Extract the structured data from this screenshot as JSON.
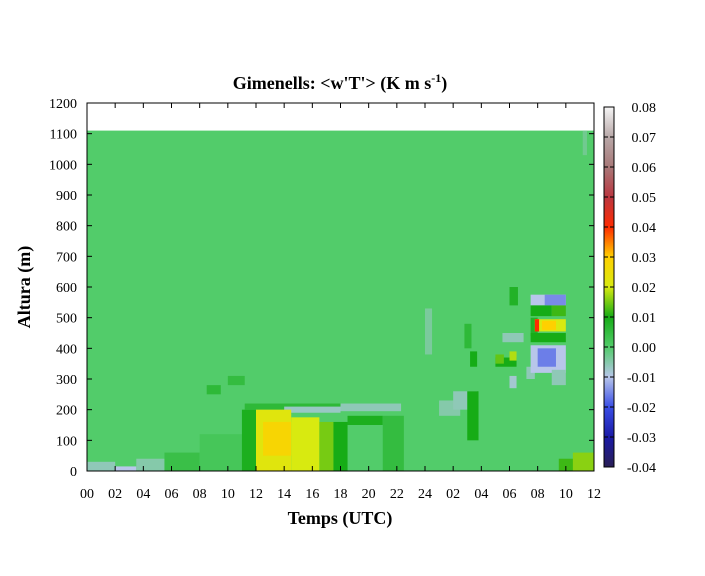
{
  "chart_data": {
    "type": "heatmap",
    "title": "Gimenells: <w'T'> (K m s",
    "title_superscript": "-1",
    "title_suffix": ")",
    "xlabel": "Temps (UTC)",
    "ylabel": "Altura (m)",
    "x_tick_labels": [
      "00",
      "02",
      "04",
      "06",
      "08",
      "10",
      "12",
      "14",
      "16",
      "18",
      "20",
      "22",
      "24",
      "02",
      "04",
      "06",
      "08",
      "10",
      "12"
    ],
    "y_ticks": [
      0,
      100,
      200,
      300,
      400,
      500,
      600,
      700,
      800,
      900,
      1000,
      1100,
      1200
    ],
    "ylim": [
      0,
      1200
    ],
    "x_range_hours": [
      0,
      36
    ],
    "data_top_height_m": 1110,
    "colorbar": {
      "range": [
        -0.04,
        0.08
      ],
      "tick_labels": [
        "-0.04",
        "-0.03",
        "-0.02",
        "-0.01",
        "0.00",
        "0.01",
        "0.02",
        "0.03",
        "0.04",
        "0.05",
        "0.06",
        "0.07",
        "0.08"
      ],
      "colors": [
        {
          "v": -0.04,
          "c": "#2a1f55"
        },
        {
          "v": -0.03,
          "c": "#1a1aa6"
        },
        {
          "v": -0.02,
          "c": "#3a4ee6"
        },
        {
          "v": -0.01,
          "c": "#b8c6ea"
        },
        {
          "v": 0.0,
          "c": "#52cc6a"
        },
        {
          "v": 0.01,
          "c": "#16ac16"
        },
        {
          "v": 0.02,
          "c": "#d8ea10"
        },
        {
          "v": 0.03,
          "c": "#ffd000"
        },
        {
          "v": 0.04,
          "c": "#ff2a00"
        },
        {
          "v": 0.05,
          "c": "#ba3640"
        },
        {
          "v": 0.06,
          "c": "#a87878"
        },
        {
          "v": 0.07,
          "c": "#b8a8a8"
        },
        {
          "v": 0.08,
          "c": "#f6f6f6"
        }
      ]
    },
    "background_value": 0.0,
    "cells": [
      {
        "x0": 0,
        "x1": 2,
        "y0": 0,
        "y1": 30,
        "v": -0.006
      },
      {
        "x0": 2,
        "x1": 3.5,
        "y0": 0,
        "y1": 15,
        "v": -0.01
      },
      {
        "x0": 3.5,
        "x1": 5.5,
        "y0": 0,
        "y1": 40,
        "v": -0.005
      },
      {
        "x0": 5.5,
        "x1": 8,
        "y0": 0,
        "y1": 60,
        "v": 0.004
      },
      {
        "x0": 8,
        "x1": 11,
        "y0": 0,
        "y1": 120,
        "v": 0.002
      },
      {
        "x0": 10,
        "x1": 11.2,
        "y0": 280,
        "y1": 310,
        "v": 0.005
      },
      {
        "x0": 8.5,
        "x1": 9.5,
        "y0": 250,
        "y1": 280,
        "v": 0.006
      },
      {
        "x0": 11,
        "x1": 12,
        "y0": 0,
        "y1": 200,
        "v": 0.009
      },
      {
        "x0": 11.2,
        "x1": 18,
        "y0": 200,
        "y1": 220,
        "v": 0.006
      },
      {
        "x0": 14,
        "x1": 18,
        "y0": 190,
        "y1": 210,
        "v": -0.007
      },
      {
        "x0": 12,
        "x1": 14.5,
        "y0": 0,
        "y1": 200,
        "v": 0.022
      },
      {
        "x0": 12.5,
        "x1": 14.5,
        "y0": 50,
        "y1": 160,
        "v": 0.028
      },
      {
        "x0": 14.5,
        "x1": 16.5,
        "y0": 0,
        "y1": 175,
        "v": 0.02
      },
      {
        "x0": 16.5,
        "x1": 17.5,
        "y0": 0,
        "y1": 160,
        "v": 0.015
      },
      {
        "x0": 17.5,
        "x1": 18.5,
        "y0": 0,
        "y1": 160,
        "v": 0.01
      },
      {
        "x0": 18,
        "x1": 22.3,
        "y0": 195,
        "y1": 220,
        "v": -0.006
      },
      {
        "x0": 18.5,
        "x1": 21,
        "y0": 150,
        "y1": 180,
        "v": 0.009
      },
      {
        "x0": 21,
        "x1": 22.5,
        "y0": 0,
        "y1": 180,
        "v": 0.005
      },
      {
        "x0": 24,
        "x1": 24.5,
        "y0": 380,
        "y1": 530,
        "v": -0.004
      },
      {
        "x0": 25,
        "x1": 26.5,
        "y0": 180,
        "y1": 230,
        "v": -0.005
      },
      {
        "x0": 26,
        "x1": 27.7,
        "y0": 200,
        "y1": 260,
        "v": -0.006
      },
      {
        "x0": 27,
        "x1": 27.8,
        "y0": 100,
        "y1": 260,
        "v": 0.01
      },
      {
        "x0": 26.8,
        "x1": 27.3,
        "y0": 400,
        "y1": 480,
        "v": 0.006
      },
      {
        "x0": 27.2,
        "x1": 27.7,
        "y0": 340,
        "y1": 390,
        "v": 0.01
      },
      {
        "x0": 29,
        "x1": 30.5,
        "y0": 340,
        "y1": 370,
        "v": 0.01
      },
      {
        "x0": 29,
        "x1": 29.6,
        "y0": 350,
        "y1": 380,
        "v": 0.014
      },
      {
        "x0": 30,
        "x1": 30.5,
        "y0": 360,
        "y1": 390,
        "v": 0.018
      },
      {
        "x0": 30,
        "x1": 30.6,
        "y0": 540,
        "y1": 600,
        "v": 0.008
      },
      {
        "x0": 29.5,
        "x1": 31,
        "y0": 420,
        "y1": 450,
        "v": -0.006
      },
      {
        "x0": 30,
        "x1": 30.5,
        "y0": 270,
        "y1": 310,
        "v": -0.008
      },
      {
        "x0": 31.2,
        "x1": 31.8,
        "y0": 300,
        "y1": 340,
        "v": -0.006
      },
      {
        "x0": 31.5,
        "x1": 34,
        "y0": 540,
        "y1": 575,
        "v": -0.01
      },
      {
        "x0": 32.5,
        "x1": 34,
        "y0": 540,
        "y1": 575,
        "v": -0.015
      },
      {
        "x0": 31.5,
        "x1": 33,
        "y0": 505,
        "y1": 540,
        "v": 0.01
      },
      {
        "x0": 33,
        "x1": 34,
        "y0": 505,
        "y1": 540,
        "v": 0.012
      },
      {
        "x0": 31.5,
        "x1": 32,
        "y0": 440,
        "y1": 500,
        "v": 0.008
      },
      {
        "x0": 31.8,
        "x1": 34,
        "y0": 455,
        "y1": 495,
        "v": 0.02
      },
      {
        "x0": 31.8,
        "x1": 32.1,
        "y0": 455,
        "y1": 495,
        "v": 0.04
      },
      {
        "x0": 32.3,
        "x1": 33.3,
        "y0": 460,
        "y1": 490,
        "v": 0.03
      },
      {
        "x0": 31.5,
        "x1": 34,
        "y0": 420,
        "y1": 450,
        "v": 0.01
      },
      {
        "x0": 31.5,
        "x1": 34,
        "y0": 320,
        "y1": 410,
        "v": -0.01
      },
      {
        "x0": 32,
        "x1": 33.3,
        "y0": 340,
        "y1": 400,
        "v": -0.016
      },
      {
        "x0": 33,
        "x1": 34,
        "y0": 280,
        "y1": 330,
        "v": -0.006
      },
      {
        "x0": 33.5,
        "x1": 36,
        "y0": 0,
        "y1": 40,
        "v": 0.012
      },
      {
        "x0": 34.5,
        "x1": 36,
        "y0": 0,
        "y1": 60,
        "v": 0.016
      },
      {
        "x0": 35.2,
        "x1": 35.5,
        "y0": 1030,
        "y1": 1110,
        "v": -0.003
      }
    ]
  }
}
